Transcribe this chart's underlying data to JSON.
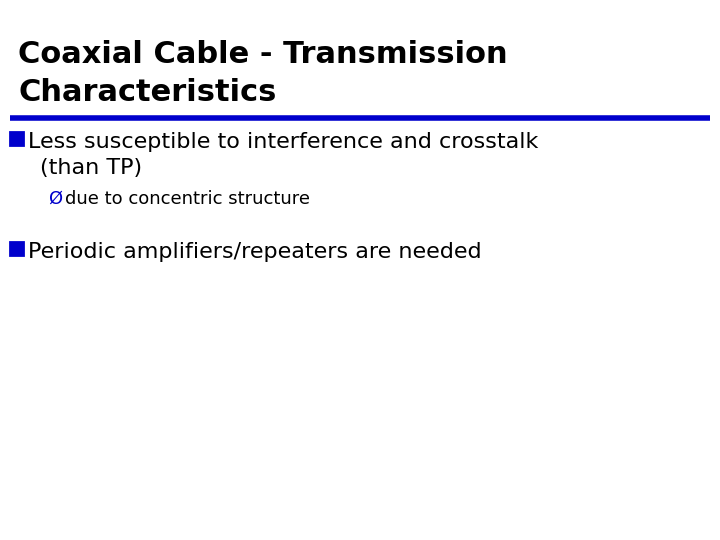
{
  "title_line1": "Coaxial Cable - Transmission",
  "title_line2": "Characteristics",
  "title_color": "#000000",
  "title_fontsize": 22,
  "separator_color": "#0000CC",
  "separator_lw": 4,
  "bullet_color": "#0000CC",
  "bullet1_text1": "Less susceptible to interference and crosstalk",
  "bullet1_text2": "(than TP)",
  "sub_bullet_prefix": "Ø due to concentric structure",
  "bullet2_text": "Periodic amplifiers/repeaters are needed",
  "body_fontsize": 16,
  "sub_fontsize": 13,
  "text_color": "#000000",
  "bg_color": "#ffffff",
  "sq_size_pts": 13
}
